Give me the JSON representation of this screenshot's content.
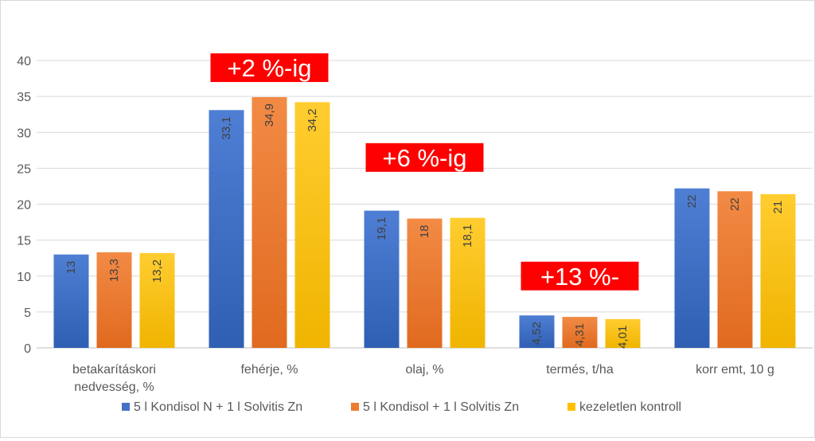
{
  "chart_data": {
    "type": "bar",
    "title": "",
    "xlabel": "",
    "ylabel": "",
    "ylim": [
      0,
      40
    ],
    "yticks": [
      0,
      5,
      10,
      15,
      20,
      25,
      30,
      35,
      40
    ],
    "grid": true,
    "legend_position": "bottom",
    "categories": [
      [
        "betakarításkori",
        "nedvesség, %"
      ],
      [
        "fehérje, %"
      ],
      [
        "olaj, %"
      ],
      [
        "termés, t/ha"
      ],
      [
        "korr emt, 10 g"
      ]
    ],
    "series": [
      {
        "name": "5 l Kondisol N + 1 l Solvitis Zn",
        "color": "#4472c4",
        "values": [
          13,
          33.1,
          19.1,
          4.52,
          22.2
        ],
        "labels": [
          "13",
          "33,1",
          "19,1",
          "4,52",
          "22"
        ]
      },
      {
        "name": "5 l Kondisol + 1 l Solvitis Zn",
        "color": "#ed7d31",
        "values": [
          13.3,
          34.9,
          18,
          4.31,
          21.8
        ],
        "labels": [
          "13,3",
          "34,9",
          "18",
          "4,31",
          "22"
        ]
      },
      {
        "name": "kezeletlen kontroll",
        "color": "#ffc000",
        "values": [
          13.2,
          34.2,
          18.1,
          4.01,
          21.4
        ],
        "labels": [
          "13,2",
          "34,2",
          "18,1",
          "4,01",
          "21"
        ]
      }
    ],
    "annotations": [
      {
        "text": "+2 %-ig",
        "category": 1,
        "level": 39,
        "color": "#ff0000"
      },
      {
        "text": "+6 %-ig",
        "category": 2,
        "level": 26.5,
        "color": "#ff0000"
      },
      {
        "text": "+13 %-",
        "category": 3,
        "level": 10,
        "color": "#ff0000"
      }
    ]
  }
}
